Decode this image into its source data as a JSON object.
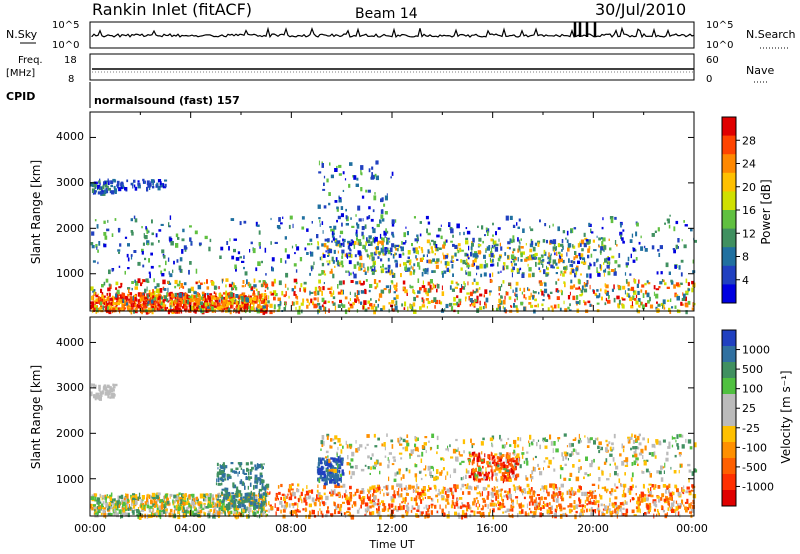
{
  "header": {
    "station": "Rankin Inlet (fitACF)",
    "beam": "Beam 14",
    "date": "30/Jul/2010"
  },
  "params": {
    "nsky_label": "N.Sky",
    "nsearch_label": "N.Search",
    "freq_label_1": "Freq.",
    "freq_label_2": "[MHz]",
    "nave_label": "Nave",
    "cpid_label": "CPID",
    "cpid_value": "normalsound (fast) 157",
    "nsky_ticks": [
      "10^5",
      "10^0"
    ],
    "nsearch_ticks": [
      "10^5",
      "10^0"
    ],
    "freq_ticks": [
      "18",
      "8"
    ],
    "nave_ticks": [
      "60",
      "0"
    ]
  },
  "axes": {
    "ylabel": "Slant Range [km]",
    "xlabel": "Time UT",
    "yticks": [
      "4000",
      "3000",
      "2000",
      "1000"
    ],
    "xticks": [
      "00:00",
      "04:00",
      "08:00",
      "12:00",
      "16:00",
      "20:00",
      "00:00"
    ]
  },
  "chart_data": [
    {
      "type": "heatmap",
      "name": "power",
      "xlabel": "Time UT",
      "ylabel": "Slant Range [km]",
      "ylim": [
        180,
        4560
      ],
      "xlim": [
        0,
        24
      ],
      "colorbar": {
        "label": "Power [dB]",
        "ticks": [
          "28",
          "24",
          "20",
          "16",
          "12",
          "8",
          "4"
        ],
        "colors": [
          "#e00000",
          "#ff4400",
          "#ff8800",
          "#ffc000",
          "#d0e000",
          "#60c040",
          "#409060",
          "#2070a0",
          "#2040c0",
          "#0000e0"
        ]
      }
    },
    {
      "type": "heatmap",
      "name": "velocity",
      "xlabel": "Time UT",
      "ylabel": "Slant Range [km]",
      "ylim": [
        180,
        4560
      ],
      "xlim": [
        0,
        24
      ],
      "colorbar": {
        "label": "Velocity [m s⁻¹]",
        "ticks": [
          "1000",
          "500",
          "100",
          "25",
          "-25",
          "-100",
          "-500",
          "-1000"
        ],
        "colors": [
          "#2040c0",
          "#3070a0",
          "#409060",
          "#50c040",
          "#bbbbbb",
          "#bbbbbb",
          "#ffc000",
          "#ff9000",
          "#ff6000",
          "#ff3000",
          "#e00000"
        ]
      }
    }
  ],
  "colors": {
    "frame": "#000000",
    "ground_scatter": "#bbbbbb"
  }
}
